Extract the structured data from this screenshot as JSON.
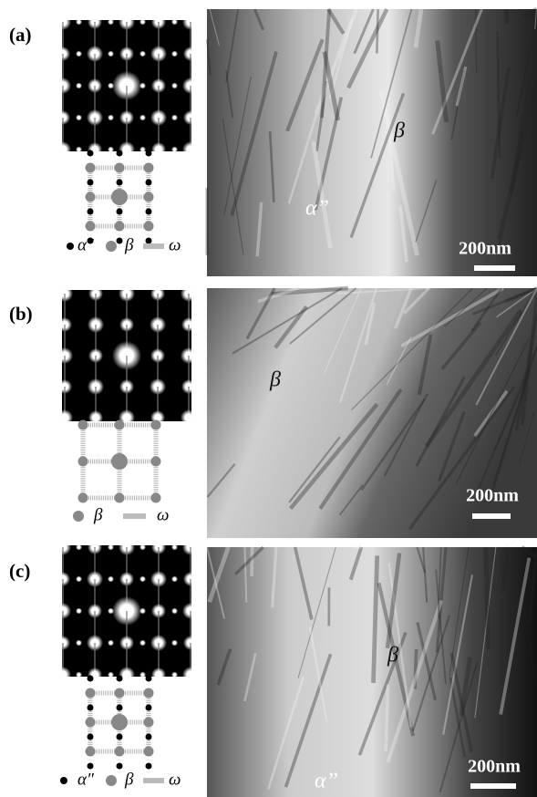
{
  "panels": [
    {
      "label": "(a)",
      "legend": [
        "α″",
        "β",
        "ω"
      ],
      "annotations": [
        "β",
        "α”"
      ],
      "scale_bar": "200nm"
    },
    {
      "label": "(b)",
      "legend": [
        "β",
        "ω"
      ],
      "annotations": [
        "β"
      ],
      "scale_bar": "200nm"
    },
    {
      "label": "(c)",
      "legend": [
        "α″",
        "β",
        "ω"
      ],
      "annotations": [
        "β",
        "α”"
      ],
      "scale_bar": "200nm"
    }
  ]
}
